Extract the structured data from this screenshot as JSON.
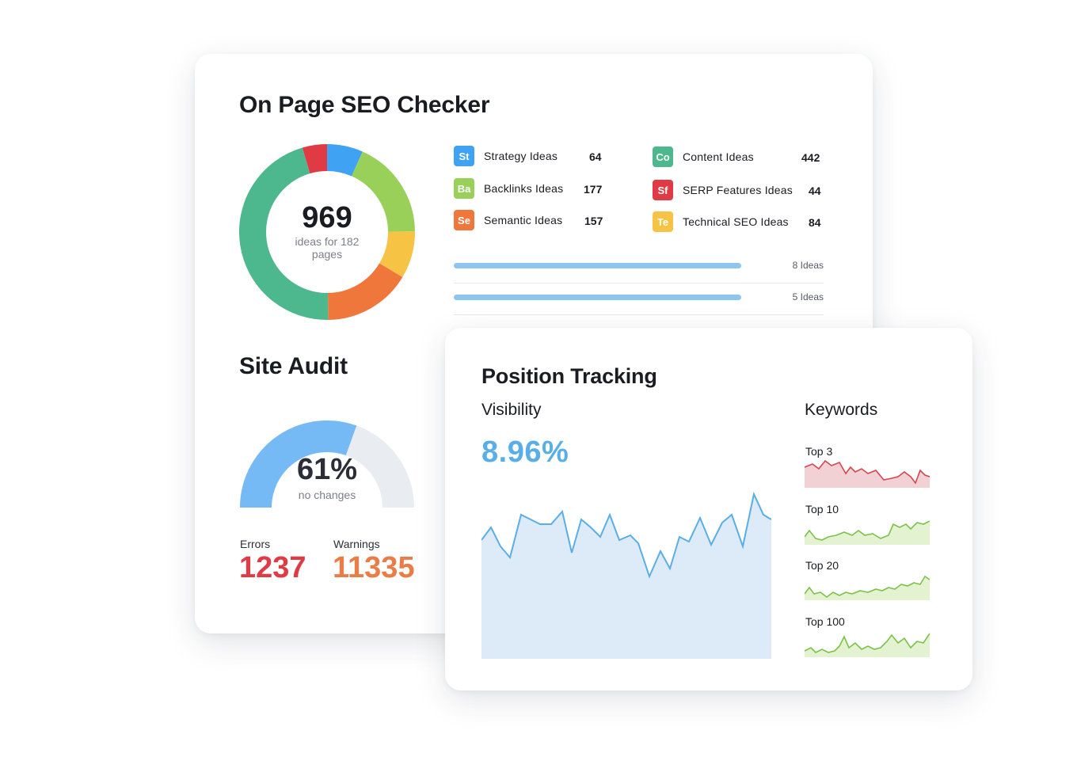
{
  "seo_checker": {
    "title": "On Page SEO Checker",
    "total": "969",
    "total_caption": "ideas for 182 pages",
    "ideas": [
      {
        "abbr": "St",
        "label": "Strategy Ideas",
        "count": "64",
        "color": "#3fa2f2"
      },
      {
        "abbr": "Ba",
        "label": "Backlinks Ideas",
        "count": "177",
        "color": "#98d05a"
      },
      {
        "abbr": "Se",
        "label": "Semantic Ideas",
        "count": "157",
        "color": "#f0773c"
      },
      {
        "abbr": "Co",
        "label": "Content Ideas",
        "count": "442",
        "color": "#4db78e"
      },
      {
        "abbr": "Sf",
        "label": "SERP Features Ideas",
        "count": "44",
        "color": "#e03b45"
      },
      {
        "abbr": "Te",
        "label": "Technical SEO Ideas",
        "count": "84",
        "color": "#f6c344"
      }
    ],
    "bars": [
      {
        "label": "8 Ideas",
        "fraction": 0.78
      },
      {
        "label": "5 Ideas",
        "fraction": 0.78
      }
    ]
  },
  "site_audit": {
    "title": "Site Audit",
    "percent": "61%",
    "percent_value": 61,
    "caption": "no changes",
    "errors_label": "Errors",
    "errors_value": "1237",
    "warnings_label": "Warnings",
    "warnings_value": "11335",
    "colors": {
      "gauge": "#76baf5",
      "track": "#e9ecf0",
      "errors": "#e03b45",
      "warnings": "#ec7c45"
    }
  },
  "position_tracking": {
    "title": "Position Tracking",
    "visibility_label": "Visibility",
    "visibility_value": "8.96%",
    "keywords_label": "Keywords",
    "keyword_groups": [
      {
        "label": "Top 3",
        "trend": "red"
      },
      {
        "label": "Top 10",
        "trend": "green"
      },
      {
        "label": "Top 20",
        "trend": "green"
      },
      {
        "label": "Top 100",
        "trend": "green"
      }
    ]
  }
}
